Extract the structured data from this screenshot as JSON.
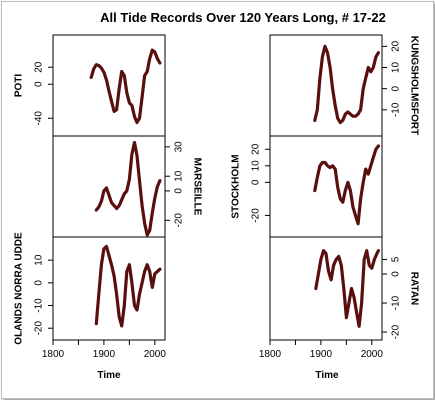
{
  "title": "All Tide Records Over 120 Years Long, # 17-22",
  "x_axis_label": "Time",
  "line_color": "#5a0f0f",
  "chart_data": [
    {
      "type": "line",
      "name": "POTI",
      "column": "left",
      "row": 0,
      "ylabel_side": "left",
      "x": [
        1875,
        1880,
        1885,
        1890,
        1895,
        1900,
        1905,
        1910,
        1915,
        1920,
        1925,
        1930,
        1935,
        1940,
        1945,
        1950,
        1955,
        1960,
        1965,
        1970,
        1975,
        1980,
        1985,
        1990,
        1995,
        2000,
        2005,
        2010
      ],
      "y": [
        8,
        18,
        23,
        22,
        19,
        14,
        5,
        -8,
        -20,
        -32,
        -30,
        -5,
        15,
        10,
        -10,
        -22,
        -25,
        -38,
        -45,
        -40,
        -15,
        10,
        15,
        30,
        40,
        38,
        30,
        25
      ],
      "ylim": [
        -55,
        52
      ],
      "yticks": [
        -40,
        0,
        20
      ],
      "xlim": [
        1800,
        2020
      ],
      "xticks": [
        1800,
        1850,
        1900,
        1950,
        2000
      ]
    },
    {
      "type": "line",
      "name": "MARSEILLE",
      "column": "left",
      "row": 1,
      "ylabel_side": "right",
      "x": [
        1885,
        1890,
        1895,
        1900,
        1905,
        1910,
        1915,
        1920,
        1925,
        1930,
        1935,
        1940,
        1945,
        1950,
        1955,
        1960,
        1965,
        1970,
        1975,
        1980,
        1985,
        1990,
        1995,
        2000,
        2005,
        2010
      ],
      "y": [
        -13,
        -11,
        -7,
        0,
        2,
        -3,
        -8,
        -10,
        -12,
        -10,
        -6,
        -2,
        0,
        8,
        25,
        33,
        24,
        7,
        -10,
        -22,
        -30,
        -27,
        -15,
        -5,
        3,
        7
      ],
      "ylim": [
        -28,
        34
      ],
      "yticks": [
        -20,
        0,
        10,
        30
      ],
      "xlim": [
        1800,
        2020
      ],
      "xticks": [
        1800,
        1850,
        1900,
        1950,
        2000
      ]
    },
    {
      "type": "line",
      "name": "OLANDS NORRA UDDE",
      "column": "left",
      "row": 2,
      "ylabel_side": "left",
      "x": [
        1885,
        1890,
        1895,
        1900,
        1905,
        1910,
        1915,
        1920,
        1925,
        1930,
        1935,
        1940,
        1945,
        1950,
        1955,
        1960,
        1965,
        1970,
        1975,
        1980,
        1985,
        1990,
        1995,
        2000,
        2005,
        2010
      ],
      "y": [
        -18,
        -5,
        8,
        15,
        16,
        12,
        8,
        3,
        -5,
        -15,
        -19,
        -10,
        5,
        8,
        0,
        -10,
        -12,
        -5,
        0,
        5,
        8,
        5,
        -2,
        4,
        5,
        6
      ],
      "ylim": [
        -23,
        18
      ],
      "yticks": [
        -20,
        -10,
        0,
        10
      ],
      "xlim": [
        1800,
        2020
      ],
      "xticks": [
        1800,
        1850,
        1900,
        1950,
        2000
      ]
    },
    {
      "type": "line",
      "name": "KUNGSHOLMSFORT",
      "column": "right",
      "row": 0,
      "ylabel_side": "right",
      "x": [
        1888,
        1893,
        1898,
        1903,
        1908,
        1913,
        1918,
        1923,
        1928,
        1933,
        1938,
        1943,
        1948,
        1953,
        1958,
        1963,
        1968,
        1973,
        1978,
        1983,
        1988,
        1993,
        1998,
        2003,
        2008,
        2013
      ],
      "y": [
        -15,
        -10,
        5,
        15,
        20,
        17,
        10,
        0,
        -8,
        -14,
        -16,
        -15,
        -12,
        -11,
        -12,
        -13,
        -13,
        -12,
        -10,
        0,
        5,
        10,
        8,
        10,
        15,
        17
      ],
      "ylim": [
        -20,
        23
      ],
      "yticks": [
        -10,
        0,
        10,
        20
      ],
      "xlim": [
        1800,
        2020
      ],
      "xticks": [
        1800,
        1850,
        1900,
        1950,
        2000
      ]
    },
    {
      "type": "line",
      "name": "STOCKHOLM",
      "column": "right",
      "row": 1,
      "ylabel_side": "left",
      "x": [
        1888,
        1893,
        1898,
        1903,
        1908,
        1913,
        1918,
        1923,
        1928,
        1933,
        1938,
        1943,
        1948,
        1953,
        1958,
        1963,
        1968,
        1973,
        1978,
        1983,
        1988,
        1993,
        1998,
        2003,
        2008,
        2013
      ],
      "y": [
        -5,
        3,
        10,
        12,
        12,
        10,
        9,
        10,
        8,
        -3,
        -10,
        -12,
        -5,
        0,
        -5,
        -15,
        -20,
        -25,
        -10,
        0,
        8,
        5,
        10,
        15,
        20,
        22
      ],
      "ylim": [
        -30,
        25
      ],
      "yticks": [
        -20,
        0,
        10,
        20
      ],
      "xlim": [
        1800,
        2020
      ],
      "xticks": [
        1800,
        1850,
        1900,
        1950,
        2000
      ]
    },
    {
      "type": "line",
      "name": "RATAN",
      "column": "right",
      "row": 2,
      "ylabel_side": "right",
      "x": [
        1890,
        1895,
        1900,
        1905,
        1910,
        1915,
        1920,
        1925,
        1930,
        1935,
        1940,
        1945,
        1950,
        1955,
        1960,
        1965,
        1970,
        1975,
        1980,
        1985,
        1990,
        1995,
        2000,
        2005,
        2010,
        2013
      ],
      "y": [
        -5,
        0,
        5,
        8,
        7,
        1,
        -2,
        3,
        5,
        6,
        3,
        -5,
        -15,
        -10,
        -5,
        -8,
        -13,
        -18,
        -10,
        5,
        8,
        3,
        2,
        5,
        7,
        8
      ],
      "ylim": [
        -21,
        11
      ],
      "yticks": [
        -20,
        -10,
        0,
        5
      ],
      "xlim": [
        1800,
        2020
      ],
      "xticks": [
        1800,
        1850,
        1900,
        1950,
        2000
      ]
    }
  ]
}
